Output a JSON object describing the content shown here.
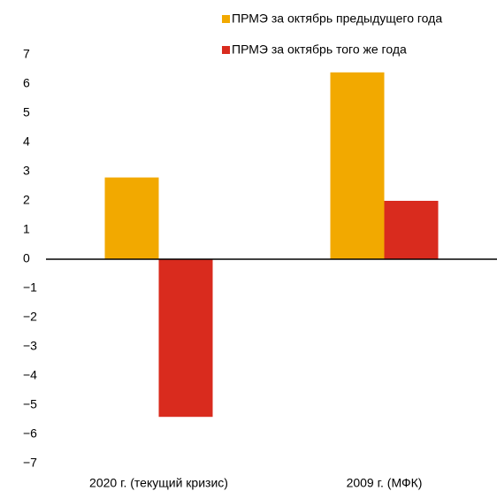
{
  "chart_data": {
    "type": "bar",
    "categories": [
      "2020 г. (текущий кризис)",
      "2009 г. (МФК)"
    ],
    "series": [
      {
        "name": "ПРМЭ за октябрь предыдущего года",
        "color": "#f2a900",
        "values": [
          2.8,
          6.4
        ]
      },
      {
        "name": "ПРМЭ за октябрь того же года",
        "color": "#d92b1e",
        "values": [
          -5.4,
          2.0
        ]
      }
    ],
    "ylim": [
      -7,
      7
    ],
    "yticks": [
      {
        "value": -7,
        "label": "−7"
      },
      {
        "value": -6,
        "label": "−6"
      },
      {
        "value": -5,
        "label": "−5"
      },
      {
        "value": -4,
        "label": "−4"
      },
      {
        "value": -3,
        "label": "−3"
      },
      {
        "value": -2,
        "label": "−2"
      },
      {
        "value": -1,
        "label": "−1"
      },
      0,
      1,
      2,
      3,
      4,
      5,
      6,
      7
    ],
    "grid": false
  }
}
